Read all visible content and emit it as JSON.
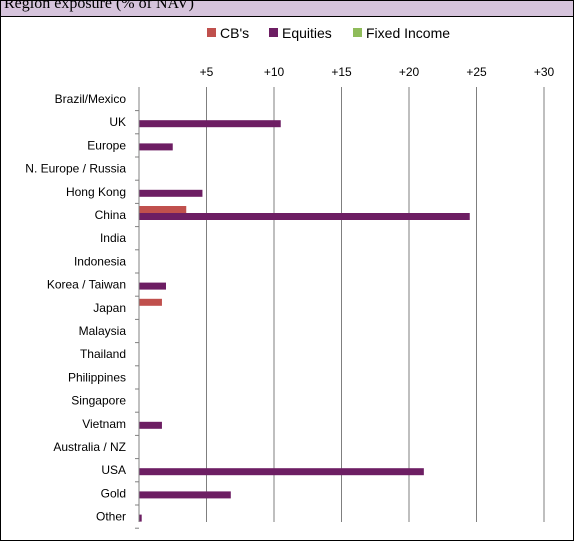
{
  "header": {
    "text": "Region exposure (% of NAV)"
  },
  "chart_data": {
    "type": "bar",
    "orientation": "horizontal",
    "title": "",
    "xlabel": "",
    "ylabel": "",
    "xlim": [
      0,
      30
    ],
    "xticks": [
      5,
      10,
      15,
      20,
      25,
      30
    ],
    "xtick_labels": [
      "+5",
      "+10",
      "+15",
      "+20",
      "+25",
      "+30"
    ],
    "grid": true,
    "legend": "top",
    "categories": [
      "Brazil/Mexico",
      "UK",
      "Europe",
      "N. Europe / Russia",
      "Hong Kong",
      "China",
      "India",
      "Indonesia",
      "Korea / Taiwan",
      "Japan",
      "Malaysia",
      "Thailand",
      "Philippines",
      "Singapore",
      "Vietnam",
      "Australia / NZ",
      "USA",
      "Gold",
      "Other"
    ],
    "series": [
      {
        "name": "CB's",
        "color": "#c0504d",
        "values": [
          0,
          0,
          0,
          0,
          0,
          3.5,
          0,
          0,
          0,
          1.7,
          0,
          0,
          0,
          0,
          0,
          0,
          0,
          0,
          0
        ]
      },
      {
        "name": "Equities",
        "color": "#6d1e63",
        "values": [
          0,
          10.5,
          2.5,
          0,
          4.7,
          24.5,
          0,
          0,
          2.0,
          0,
          0,
          0,
          0,
          0,
          1.7,
          0,
          21.1,
          6.8,
          0.2
        ]
      },
      {
        "name": "Fixed Income",
        "color": "#8fbc5a",
        "values": [
          0,
          0,
          0,
          0,
          0,
          0,
          0,
          0,
          0,
          0,
          0,
          0,
          0,
          0,
          0,
          0,
          0,
          0,
          0
        ]
      }
    ]
  }
}
